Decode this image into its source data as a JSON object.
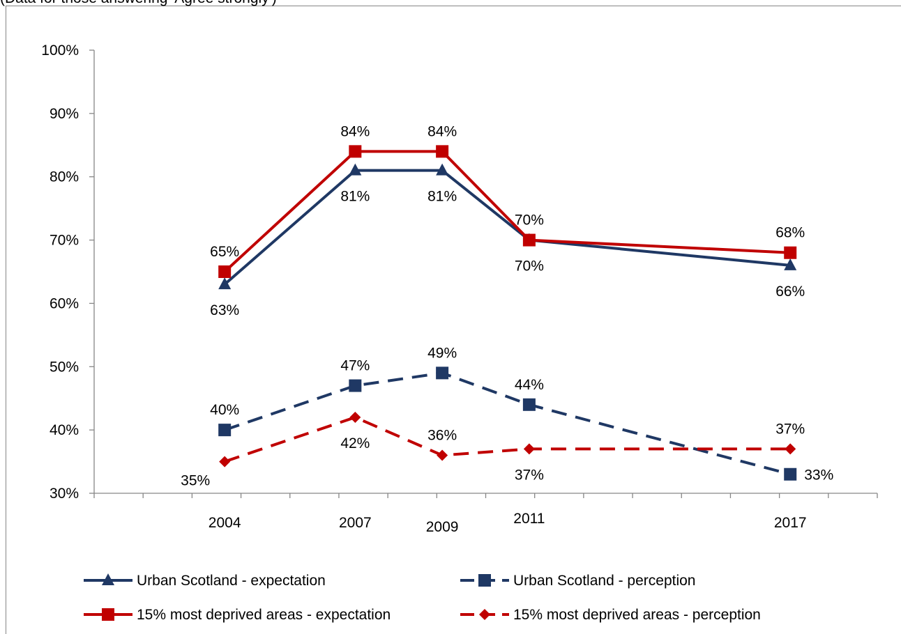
{
  "note": "(Data for those answering 'Agree strongly')",
  "chart_data": {
    "type": "line",
    "title": "",
    "xlabel": "",
    "ylabel": "",
    "ylim": [
      0.3,
      1.0
    ],
    "y_ticks": [
      "30%",
      "40%",
      "50%",
      "60%",
      "70%",
      "80%",
      "90%",
      "100%"
    ],
    "grid": false,
    "legend_position": "bottom",
    "x_range": [
      2001,
      2019
    ],
    "x": [
      2004,
      2007,
      2009,
      2011,
      2017
    ],
    "x_labels": [
      "2004",
      "2007",
      "2009",
      "2011",
      "2017"
    ],
    "series": [
      {
        "name": "Urban Scotland - expectation",
        "color": "#1f3864",
        "dash": false,
        "marker": "triangle",
        "values": [
          0.63,
          0.81,
          0.81,
          0.7,
          0.66
        ],
        "labels": [
          "63%",
          "81%",
          "81%",
          "70%",
          "66%"
        ],
        "label_side": [
          "below",
          "below",
          "below",
          "below",
          "below"
        ]
      },
      {
        "name": "Urban Scotland - perception",
        "color": "#1f3864",
        "dash": true,
        "marker": "square",
        "values": [
          0.4,
          0.47,
          0.49,
          0.44,
          0.33
        ],
        "labels": [
          "40%",
          "47%",
          "49%",
          "44%",
          "33%"
        ],
        "label_side": [
          "above",
          "above",
          "above",
          "above",
          "right"
        ]
      },
      {
        "name": "15% most deprived areas - expectation",
        "color": "#c00000",
        "dash": false,
        "marker": "square",
        "values": [
          0.65,
          0.84,
          0.84,
          0.7,
          0.68
        ],
        "labels": [
          "65%",
          "84%",
          "84%",
          "70%",
          "68%"
        ],
        "label_side": [
          "above",
          "above",
          "above",
          "above",
          "above"
        ]
      },
      {
        "name": "15% most deprived areas - perception",
        "color": "#c00000",
        "dash": true,
        "marker": "diamond",
        "values": [
          0.35,
          0.42,
          0.36,
          0.37,
          0.37
        ],
        "labels": [
          "35%",
          "42%",
          "36%",
          "37%",
          "37%"
        ],
        "label_side": [
          "belowleft",
          "below",
          "above",
          "below",
          "above"
        ]
      }
    ]
  }
}
